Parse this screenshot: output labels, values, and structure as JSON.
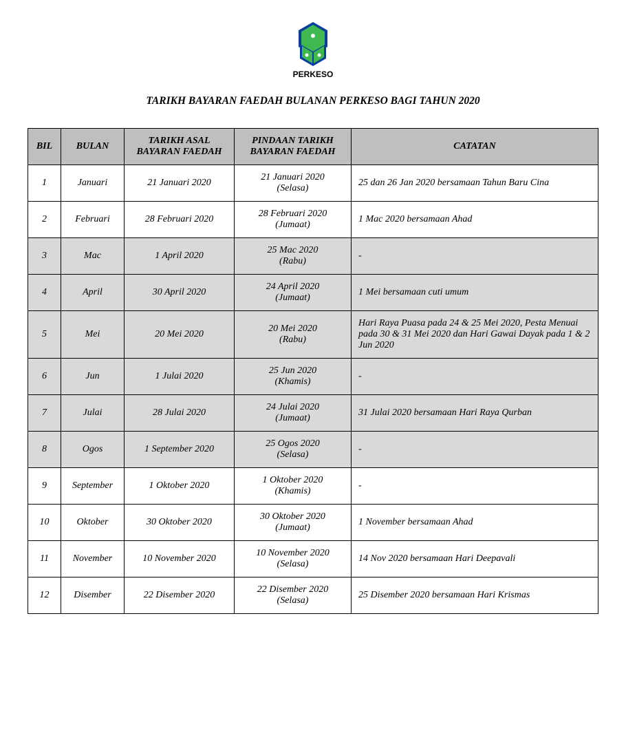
{
  "logo_text": "PERKESO",
  "colors": {
    "logo_blue": "#0a3f9e",
    "logo_green": "#3fb84f",
    "header_bg": "#bfbfbf",
    "highlight_bg": "#d9d9d9",
    "border": "#000000",
    "text": "#000000"
  },
  "title": "TARIKH BAYARAN FAEDAH BULANAN PERKESO BAGI TAHUN 2020",
  "columns": {
    "bil": "BIL",
    "bulan": "BULAN",
    "asal": "TARIKH ASAL BAYARAN FAEDAH",
    "pindaan": "PINDAAN TARIKH BAYARAN FAEDAH",
    "catatan": "CATATAN"
  },
  "rows": [
    {
      "bil": "1",
      "bulan": "Januari",
      "asal": "21 Januari 2020",
      "pind1": "21 Januari 2020",
      "pind2": "(Selasa)",
      "cat": "25 dan 26 Jan 2020 bersamaan Tahun Baru Cina",
      "hl": false
    },
    {
      "bil": "2",
      "bulan": "Februari",
      "asal": "28 Februari 2020",
      "pind1": "28 Februari 2020",
      "pind2": "(Jumaat)",
      "cat": "1 Mac 2020 bersamaan Ahad",
      "hl": false
    },
    {
      "bil": "3",
      "bulan": "Mac",
      "asal": "1 April 2020",
      "pind1": "25 Mac 2020",
      "pind2": "(Rabu)",
      "cat": "-",
      "hl": true
    },
    {
      "bil": "4",
      "bulan": "April",
      "asal": "30 April 2020",
      "pind1": "24 April 2020",
      "pind2": "(Jumaat)",
      "cat": "1 Mei bersamaan cuti umum",
      "hl": true
    },
    {
      "bil": "5",
      "bulan": "Mei",
      "asal": "20 Mei 2020",
      "pind1": "20 Mei 2020",
      "pind2": "(Rabu)",
      "cat": "Hari Raya Puasa pada 24 & 25 Mei 2020, Pesta Menuai pada 30 & 31 Mei 2020 dan Hari Gawai Dayak pada 1 & 2 Jun 2020",
      "hl": true
    },
    {
      "bil": "6",
      "bulan": "Jun",
      "asal": "1 Julai 2020",
      "pind1": "25 Jun 2020",
      "pind2": "(Khamis)",
      "cat": "-",
      "hl": true
    },
    {
      "bil": "7",
      "bulan": "Julai",
      "asal": "28 Julai 2020",
      "pind1": "24 Julai 2020",
      "pind2": "(Jumaat)",
      "cat": "31 Julai 2020 bersamaan Hari Raya Qurban",
      "hl": true
    },
    {
      "bil": "8",
      "bulan": "Ogos",
      "asal": "1 September 2020",
      "pind1": "25 Ogos 2020",
      "pind2": "(Selasa)",
      "cat": "-",
      "hl": true
    },
    {
      "bil": "9",
      "bulan": "September",
      "asal": "1 Oktober 2020",
      "pind1": "1 Oktober 2020",
      "pind2": "(Khamis)",
      "cat": "-",
      "hl": false
    },
    {
      "bil": "10",
      "bulan": "Oktober",
      "asal": "30 Oktober 2020",
      "pind1": "30 Oktober 2020",
      "pind2": "(Jumaat)",
      "cat": "1 November bersamaan Ahad",
      "hl": false
    },
    {
      "bil": "11",
      "bulan": "November",
      "asal": "10 November 2020",
      "pind1": "10 November 2020",
      "pind2": "(Selasa)",
      "cat": "14 Nov 2020 bersamaan Hari Deepavali",
      "hl": false
    },
    {
      "bil": "12",
      "bulan": "Disember",
      "asal": "22 Disember 2020",
      "pind1": "22 Disember 2020",
      "pind2": "(Selasa)",
      "cat": "25 Disember 2020 bersamaan Hari Krismas",
      "hl": false
    }
  ]
}
